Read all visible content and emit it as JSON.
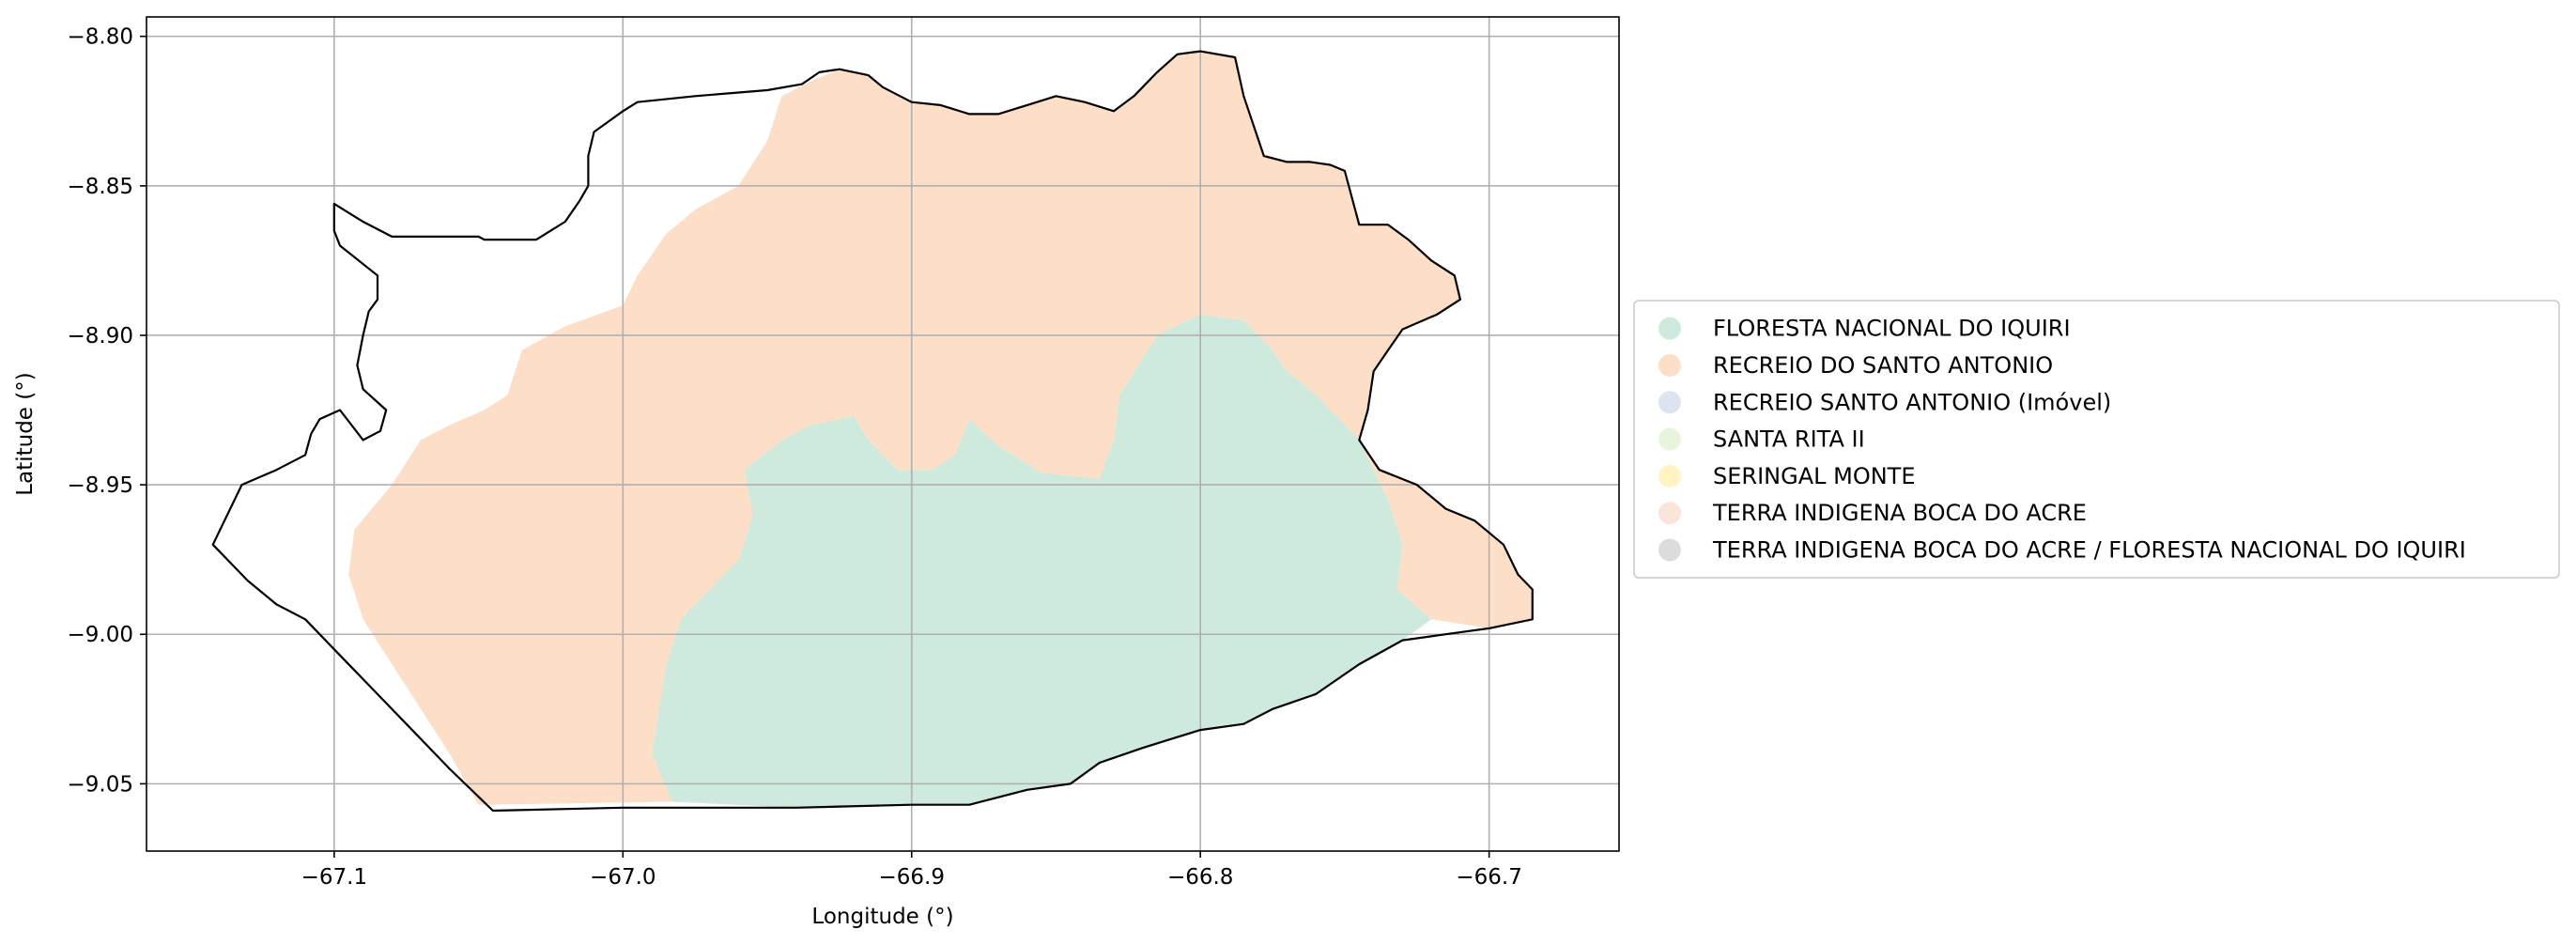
{
  "chart_data": {
    "type": "map",
    "xlabel": "Longitude (°)",
    "ylabel": "Latitude (°)",
    "xlim": [
      -67.165,
      -66.655
    ],
    "ylim": [
      -9.0725,
      -8.7935
    ],
    "x_ticks": [
      -67.1,
      -67.0,
      -66.9,
      -66.8,
      -66.7
    ],
    "y_ticks": [
      -8.8,
      -8.85,
      -8.9,
      -8.95,
      -9.0,
      -9.05
    ],
    "x_tick_labels": [
      "−67.1",
      "−67.0",
      "−66.9",
      "−66.8",
      "−66.7"
    ],
    "y_tick_labels": [
      "−8.80",
      "−8.85",
      "−8.90",
      "−8.95",
      "−9.00",
      "−9.05"
    ],
    "grid": true,
    "legend_position": "right",
    "boundary": {
      "color": "#000000",
      "points": [
        [
          -67.1,
          -8.856
        ],
        [
          -67.09,
          -8.862
        ],
        [
          -67.08,
          -8.867
        ],
        [
          -67.05,
          -8.867
        ],
        [
          -67.048,
          -8.868
        ],
        [
          -67.03,
          -8.868
        ],
        [
          -67.02,
          -8.862
        ],
        [
          -67.015,
          -8.855
        ],
        [
          -67.012,
          -8.85
        ],
        [
          -67.012,
          -8.84
        ],
        [
          -67.01,
          -8.832
        ],
        [
          -67.0,
          -8.825
        ],
        [
          -66.995,
          -8.822
        ],
        [
          -66.975,
          -8.82
        ],
        [
          -66.95,
          -8.818
        ],
        [
          -66.938,
          -8.816
        ],
        [
          -66.932,
          -8.812
        ],
        [
          -66.925,
          -8.811
        ],
        [
          -66.915,
          -8.813
        ],
        [
          -66.91,
          -8.817
        ],
        [
          -66.9,
          -8.822
        ],
        [
          -66.89,
          -8.823
        ],
        [
          -66.88,
          -8.826
        ],
        [
          -66.87,
          -8.826
        ],
        [
          -66.86,
          -8.823
        ],
        [
          -66.85,
          -8.82
        ],
        [
          -66.84,
          -8.822
        ],
        [
          -66.83,
          -8.825
        ],
        [
          -66.823,
          -8.82
        ],
        [
          -66.815,
          -8.812
        ],
        [
          -66.808,
          -8.806
        ],
        [
          -66.8,
          -8.805
        ],
        [
          -66.788,
          -8.807
        ],
        [
          -66.785,
          -8.82
        ],
        [
          -66.778,
          -8.84
        ],
        [
          -66.77,
          -8.842
        ],
        [
          -66.762,
          -8.842
        ],
        [
          -66.755,
          -8.843
        ],
        [
          -66.75,
          -8.845
        ],
        [
          -66.745,
          -8.863
        ],
        [
          -66.735,
          -8.863
        ],
        [
          -66.728,
          -8.868
        ],
        [
          -66.72,
          -8.875
        ],
        [
          -66.712,
          -8.88
        ],
        [
          -66.71,
          -8.888
        ],
        [
          -66.718,
          -8.893
        ],
        [
          -66.73,
          -8.898
        ],
        [
          -66.735,
          -8.905
        ],
        [
          -66.74,
          -8.912
        ],
        [
          -66.742,
          -8.925
        ],
        [
          -66.745,
          -8.935
        ],
        [
          -66.738,
          -8.945
        ],
        [
          -66.725,
          -8.95
        ],
        [
          -66.715,
          -8.958
        ],
        [
          -66.705,
          -8.962
        ],
        [
          -66.695,
          -8.97
        ],
        [
          -66.69,
          -8.98
        ],
        [
          -66.685,
          -8.985
        ],
        [
          -66.685,
          -8.995
        ],
        [
          -66.7,
          -8.998
        ],
        [
          -66.715,
          -9.0
        ],
        [
          -66.73,
          -9.002
        ],
        [
          -66.745,
          -9.01
        ],
        [
          -66.76,
          -9.02
        ],
        [
          -66.775,
          -9.025
        ],
        [
          -66.785,
          -9.03
        ],
        [
          -66.8,
          -9.032
        ],
        [
          -66.81,
          -9.035
        ],
        [
          -66.82,
          -9.038
        ],
        [
          -66.835,
          -9.043
        ],
        [
          -66.845,
          -9.05
        ],
        [
          -66.86,
          -9.052
        ],
        [
          -66.88,
          -9.057
        ],
        [
          -66.9,
          -9.057
        ],
        [
          -66.94,
          -9.058
        ],
        [
          -67.0,
          -9.058
        ],
        [
          -67.045,
          -9.059
        ],
        [
          -67.06,
          -9.045
        ],
        [
          -67.075,
          -9.03
        ],
        [
          -67.09,
          -9.015
        ],
        [
          -67.1,
          -9.005
        ],
        [
          -67.11,
          -8.995
        ],
        [
          -67.12,
          -8.99
        ],
        [
          -67.13,
          -8.982
        ],
        [
          -67.142,
          -8.97
        ],
        [
          -67.132,
          -8.95
        ],
        [
          -67.12,
          -8.945
        ],
        [
          -67.11,
          -8.94
        ],
        [
          -67.108,
          -8.933
        ],
        [
          -67.105,
          -8.928
        ],
        [
          -67.098,
          -8.925
        ],
        [
          -67.09,
          -8.935
        ],
        [
          -67.084,
          -8.932
        ],
        [
          -67.082,
          -8.925
        ],
        [
          -67.09,
          -8.918
        ],
        [
          -67.092,
          -8.91
        ],
        [
          -67.09,
          -8.9
        ],
        [
          -67.088,
          -8.892
        ],
        [
          -67.085,
          -8.888
        ],
        [
          -67.085,
          -8.88
        ],
        [
          -67.098,
          -8.87
        ],
        [
          -67.1,
          -8.865
        ],
        [
          -67.1,
          -8.856
        ]
      ]
    },
    "series": [
      {
        "name": "FLORESTA NACIONAL DO IQUIRI",
        "color": "#cdeadc",
        "points": [
          [
            -66.983,
            -9.056
          ],
          [
            -66.99,
            -9.04
          ],
          [
            -66.985,
            -9.01
          ],
          [
            -66.98,
            -8.995
          ],
          [
            -66.97,
            -8.985
          ],
          [
            -66.96,
            -8.975
          ],
          [
            -66.955,
            -8.96
          ],
          [
            -66.958,
            -8.945
          ],
          [
            -66.945,
            -8.935
          ],
          [
            -66.935,
            -8.93
          ],
          [
            -66.92,
            -8.927
          ],
          [
            -66.915,
            -8.935
          ],
          [
            -66.905,
            -8.945
          ],
          [
            -66.893,
            -8.945
          ],
          [
            -66.885,
            -8.94
          ],
          [
            -66.88,
            -8.928
          ],
          [
            -66.87,
            -8.937
          ],
          [
            -66.855,
            -8.946
          ],
          [
            -66.835,
            -8.948
          ],
          [
            -66.83,
            -8.935
          ],
          [
            -66.828,
            -8.92
          ],
          [
            -66.815,
            -8.9
          ],
          [
            -66.8,
            -8.893
          ],
          [
            -66.785,
            -8.895
          ],
          [
            -66.775,
            -8.905
          ],
          [
            -66.77,
            -8.912
          ],
          [
            -66.76,
            -8.92
          ],
          [
            -66.745,
            -8.935
          ],
          [
            -66.735,
            -8.955
          ],
          [
            -66.73,
            -8.97
          ],
          [
            -66.732,
            -8.985
          ],
          [
            -66.72,
            -8.995
          ],
          [
            -66.73,
            -9.002
          ],
          [
            -66.745,
            -9.01
          ],
          [
            -66.76,
            -9.02
          ],
          [
            -66.775,
            -9.025
          ],
          [
            -66.785,
            -9.03
          ],
          [
            -66.8,
            -9.032
          ],
          [
            -66.81,
            -9.035
          ],
          [
            -66.82,
            -9.038
          ],
          [
            -66.835,
            -9.043
          ],
          [
            -66.845,
            -9.05
          ],
          [
            -66.86,
            -9.052
          ],
          [
            -66.88,
            -9.057
          ],
          [
            -66.9,
            -9.057
          ],
          [
            -66.94,
            -9.058
          ],
          [
            -66.983,
            -9.056
          ]
        ]
      },
      {
        "name": "RECREIO DO SANTO ANTONIO",
        "color": "#fddec7",
        "points": [
          [
            -67.05,
            -9.057
          ],
          [
            -66.983,
            -9.056
          ],
          [
            -66.99,
            -9.04
          ],
          [
            -66.985,
            -9.01
          ],
          [
            -66.98,
            -8.995
          ],
          [
            -66.97,
            -8.985
          ],
          [
            -66.96,
            -8.975
          ],
          [
            -66.955,
            -8.96
          ],
          [
            -66.958,
            -8.945
          ],
          [
            -66.945,
            -8.935
          ],
          [
            -66.935,
            -8.93
          ],
          [
            -66.92,
            -8.927
          ],
          [
            -66.915,
            -8.935
          ],
          [
            -66.905,
            -8.945
          ],
          [
            -66.893,
            -8.945
          ],
          [
            -66.885,
            -8.94
          ],
          [
            -66.88,
            -8.928
          ],
          [
            -66.87,
            -8.937
          ],
          [
            -66.855,
            -8.946
          ],
          [
            -66.835,
            -8.948
          ],
          [
            -66.83,
            -8.935
          ],
          [
            -66.828,
            -8.92
          ],
          [
            -66.815,
            -8.9
          ],
          [
            -66.8,
            -8.893
          ],
          [
            -66.785,
            -8.895
          ],
          [
            -66.775,
            -8.905
          ],
          [
            -66.77,
            -8.912
          ],
          [
            -66.76,
            -8.92
          ],
          [
            -66.745,
            -8.935
          ],
          [
            -66.735,
            -8.955
          ],
          [
            -66.73,
            -8.97
          ],
          [
            -66.732,
            -8.985
          ],
          [
            -66.72,
            -8.995
          ],
          [
            -66.7,
            -8.998
          ],
          [
            -66.685,
            -8.995
          ],
          [
            -66.685,
            -8.985
          ],
          [
            -66.69,
            -8.98
          ],
          [
            -66.695,
            -8.97
          ],
          [
            -66.705,
            -8.962
          ],
          [
            -66.715,
            -8.958
          ],
          [
            -66.725,
            -8.95
          ],
          [
            -66.738,
            -8.945
          ],
          [
            -66.745,
            -8.935
          ],
          [
            -66.742,
            -8.925
          ],
          [
            -66.74,
            -8.912
          ],
          [
            -66.735,
            -8.905
          ],
          [
            -66.73,
            -8.898
          ],
          [
            -66.718,
            -8.893
          ],
          [
            -66.71,
            -8.888
          ],
          [
            -66.712,
            -8.88
          ],
          [
            -66.72,
            -8.875
          ],
          [
            -66.728,
            -8.868
          ],
          [
            -66.735,
            -8.863
          ],
          [
            -66.745,
            -8.863
          ],
          [
            -66.75,
            -8.845
          ],
          [
            -66.755,
            -8.843
          ],
          [
            -66.762,
            -8.842
          ],
          [
            -66.77,
            -8.842
          ],
          [
            -66.778,
            -8.84
          ],
          [
            -66.785,
            -8.82
          ],
          [
            -66.788,
            -8.807
          ],
          [
            -66.8,
            -8.805
          ],
          [
            -66.808,
            -8.806
          ],
          [
            -66.815,
            -8.812
          ],
          [
            -66.823,
            -8.82
          ],
          [
            -66.83,
            -8.825
          ],
          [
            -66.84,
            -8.822
          ],
          [
            -66.85,
            -8.82
          ],
          [
            -66.86,
            -8.823
          ],
          [
            -66.87,
            -8.826
          ],
          [
            -66.88,
            -8.826
          ],
          [
            -66.89,
            -8.823
          ],
          [
            -66.9,
            -8.822
          ],
          [
            -66.91,
            -8.817
          ],
          [
            -66.915,
            -8.813
          ],
          [
            -66.925,
            -8.811
          ],
          [
            -66.935,
            -8.815
          ],
          [
            -66.945,
            -8.82
          ],
          [
            -66.95,
            -8.835
          ],
          [
            -66.96,
            -8.85
          ],
          [
            -66.975,
            -8.858
          ],
          [
            -66.985,
            -8.866
          ],
          [
            -66.995,
            -8.88
          ],
          [
            -67.0,
            -8.89
          ],
          [
            -67.02,
            -8.897
          ],
          [
            -67.035,
            -8.905
          ],
          [
            -67.04,
            -8.92
          ],
          [
            -67.048,
            -8.925
          ],
          [
            -67.06,
            -8.93
          ],
          [
            -67.07,
            -8.935
          ],
          [
            -67.08,
            -8.95
          ],
          [
            -67.093,
            -8.965
          ],
          [
            -67.095,
            -8.98
          ],
          [
            -67.09,
            -8.995
          ],
          [
            -67.08,
            -9.01
          ],
          [
            -67.07,
            -9.025
          ],
          [
            -67.06,
            -9.04
          ],
          [
            -67.05,
            -9.057
          ]
        ]
      },
      {
        "name": "RECREIO SANTO ANTONIO (Imóvel)",
        "color": "#dde3ef",
        "points": []
      },
      {
        "name": "SANTA RITA II",
        "color": "#e8f5dc",
        "points": []
      },
      {
        "name": "SERINGAL MONTE",
        "color": "#fff4c2",
        "points": []
      },
      {
        "name": "TERRA INDIGENA BOCA DO ACRE",
        "color": "#f9e5da",
        "points": []
      },
      {
        "name": "TERRA INDIGENA BOCA DO ACRE / FLORESTA NACIONAL DO IQUIRI",
        "color": "#dcdcdc",
        "points": []
      }
    ]
  }
}
